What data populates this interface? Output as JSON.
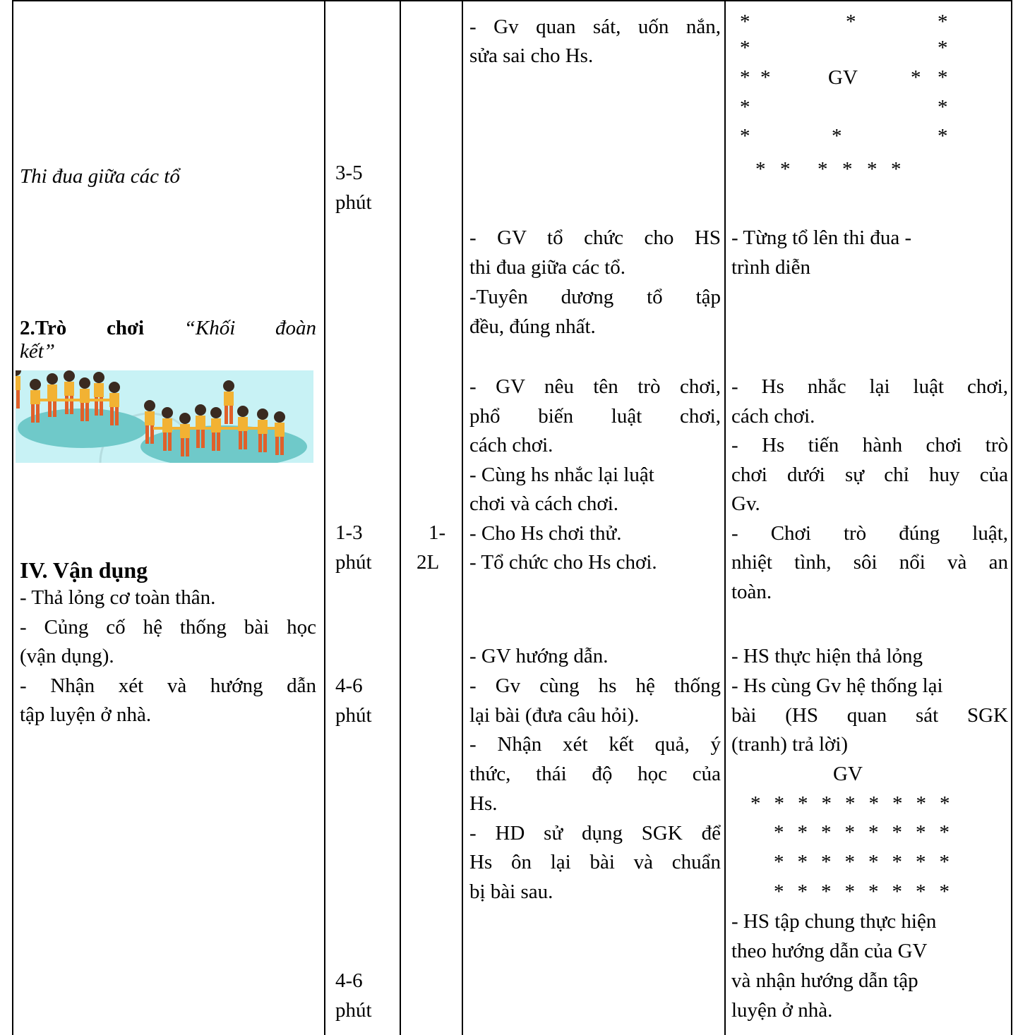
{
  "col1": {
    "compete": "Thi đua giữa các tổ",
    "game_label": "2.Trò chơi",
    "game_name": [
      "“Khối đoàn",
      "kết”"
    ],
    "heading": "IV. Vận dụng",
    "apply": [
      "- Thả lỏng cơ toàn thân.",
      "- Củng cố hệ thống bài học",
      "(vận dụng).",
      "- Nhận xét và hướng dẫn",
      "tập luyện ở nhà."
    ]
  },
  "time": [
    [
      "3-5",
      "phút"
    ],
    [
      "1-3",
      "phút"
    ],
    [
      "4-6",
      "phút"
    ],
    [
      "4-6",
      "phút"
    ]
  ],
  "reps": [
    "1-",
    "2L"
  ],
  "teacher": {
    "correct": [
      "- Gv quan sát, uốn nắn,",
      "sửa sai cho Hs."
    ],
    "compete": [
      "- GV tổ chức cho HS",
      "thi đua giữa các tổ.",
      "-Tuyên dương tổ tập",
      "đều, đúng nhất."
    ],
    "game": [
      "- GV nêu tên trò chơi,",
      "phổ biến luật chơi,",
      "cách chơi.",
      " - Cùng hs nhắc lại luật",
      "chơi và cách chơi.",
      "- Cho Hs chơi thử.",
      "- Tổ chức cho Hs chơi."
    ],
    "apply": [
      "- GV hướng dẫn.",
      "- Gv cùng hs hệ thống",
      "lại bài (đưa câu hỏi).",
      "- Nhận xét kết quả, ý",
      "thức, thái độ học của",
      "Hs.",
      "- HD sử dụng SGK để",
      "Hs ôn lại bài và chuẩn",
      "bị bài sau."
    ]
  },
  "student": {
    "formation1": [
      [
        "*",
        "*",
        "*"
      ],
      [
        "*",
        "*"
      ],
      [
        "*",
        "*",
        "GV",
        "*",
        "*"
      ],
      [
        "*",
        "*"
      ],
      [
        "*",
        "*",
        "*"
      ],
      [
        "*",
        "*",
        "*",
        "*",
        "*",
        "*"
      ]
    ],
    "compete": [
      "- Từng tổ lên  thi đua -",
      "trình diễn"
    ],
    "game": [
      "- Hs nhắc lại luật chơi,",
      "cách chơi.",
      "- Hs tiến hành chơi trò",
      "chơi dưới sự chỉ huy của",
      "Gv.",
      "- Chơi trò đúng luật,",
      "nhiệt tình, sôi nổi và an",
      "toàn."
    ],
    "apply": [
      "- HS thực hiện thả lỏng",
      "- Hs cùng Gv hệ thống lại",
      "bài (HS quan sát SGK",
      "(tranh) trả lời)"
    ],
    "formation2": {
      "label": "GV",
      "rows": [
        [
          "*",
          "*",
          "*",
          "*",
          "*",
          "*",
          "*",
          "*",
          "*"
        ],
        [
          "*",
          "*",
          "*",
          "*",
          "*",
          "*",
          "*",
          "*"
        ],
        [
          "*",
          "*",
          "*",
          "*",
          "*",
          "*",
          "*",
          "*"
        ],
        [
          "*",
          "*",
          "*",
          "*",
          "*",
          "*",
          "*",
          "*"
        ]
      ]
    },
    "practice": [
      " - HS tập chung thực hiện",
      "theo hướng dẫn của GV",
      "và nhận hướng dẫn tập",
      "luyện ở nhà."
    ]
  }
}
